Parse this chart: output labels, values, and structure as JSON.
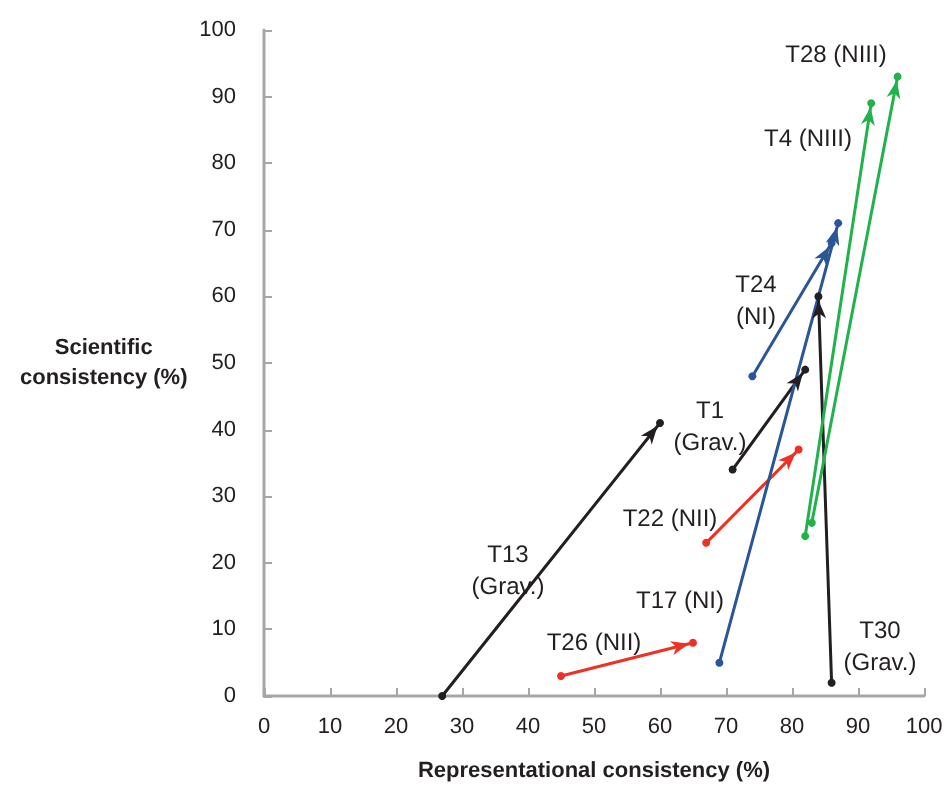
{
  "chart_data": {
    "type": "line",
    "xlabel": "Representational consistency (%)",
    "ylabel": "Scientific\nconsistency (%)",
    "xlim": [
      0,
      100
    ],
    "ylim": [
      0,
      100
    ],
    "xticks": [
      0,
      10,
      20,
      30,
      40,
      50,
      60,
      70,
      80,
      90,
      100
    ],
    "yticks": [
      0,
      10,
      20,
      30,
      40,
      50,
      60,
      70,
      80,
      90,
      100
    ],
    "marker": "circle",
    "line_style": "solid",
    "series": [
      {
        "color": "#231f20",
        "x": [
          27,
          60
        ],
        "values": [
          0,
          41
        ]
      },
      {
        "color": "#231f20",
        "x": [
          71,
          82
        ],
        "values": [
          34,
          49
        ]
      },
      {
        "color": "#ee3124",
        "x": [
          67,
          81
        ],
        "values": [
          23,
          37
        ]
      },
      {
        "color": "#ee3124",
        "x": [
          45,
          65
        ],
        "values": [
          3,
          8
        ]
      },
      {
        "color": "#2a5597",
        "x": [
          69,
          87
        ],
        "values": [
          5,
          71
        ]
      },
      {
        "color": "#2a5597",
        "x": [
          74,
          86
        ],
        "values": [
          48,
          68
        ]
      },
      {
        "color": "#231f20",
        "x": [
          86,
          84
        ],
        "values": [
          2,
          60
        ]
      },
      {
        "color": "#21b24b",
        "x": [
          82,
          92
        ],
        "values": [
          24,
          89
        ]
      },
      {
        "color": "#21b24b",
        "x": [
          83,
          96
        ],
        "values": [
          26,
          93
        ]
      }
    ],
    "annotations": [
      "T28 (NIII)",
      "T4 (NIII)",
      "T24\n(NI)",
      "T1\n(Grav.)",
      "T22 (NII)",
      "T13\n(Grav.)",
      "T17 (NI)",
      "T26 (NII)",
      "T30\n(Grav.)"
    ]
  }
}
